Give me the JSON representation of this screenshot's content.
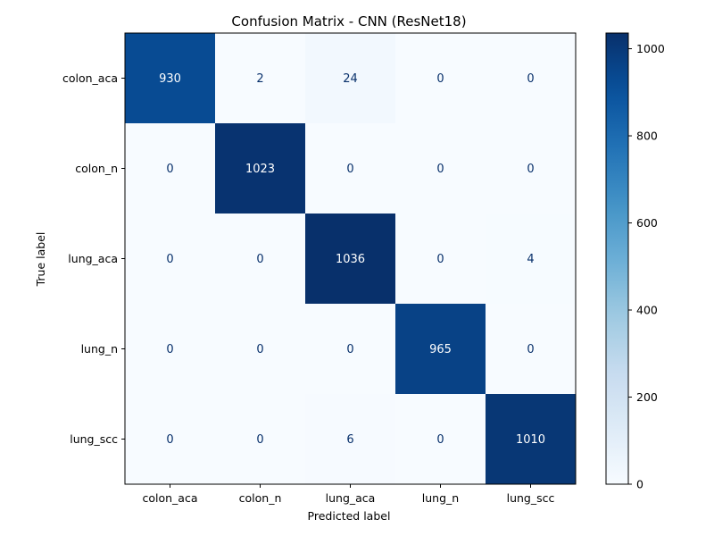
{
  "chart_data": {
    "type": "heatmap",
    "title": "Confusion Matrix - CNN (ResNet18)",
    "xlabel": "Predicted label",
    "ylabel": "True label",
    "x_categories": [
      "colon_aca",
      "colon_n",
      "lung_aca",
      "lung_n",
      "lung_scc"
    ],
    "y_categories": [
      "colon_aca",
      "colon_n",
      "lung_aca",
      "lung_n",
      "lung_scc"
    ],
    "values": [
      [
        930,
        2,
        24,
        0,
        0
      ],
      [
        0,
        1023,
        0,
        0,
        0
      ],
      [
        0,
        0,
        1036,
        0,
        4
      ],
      [
        0,
        0,
        0,
        965,
        0
      ],
      [
        0,
        0,
        6,
        0,
        1010
      ]
    ],
    "colormap": "Blues",
    "colorbar": {
      "range": [
        0,
        1036
      ],
      "ticks": [
        0,
        200,
        400,
        600,
        800,
        1000
      ]
    },
    "grid": false
  }
}
